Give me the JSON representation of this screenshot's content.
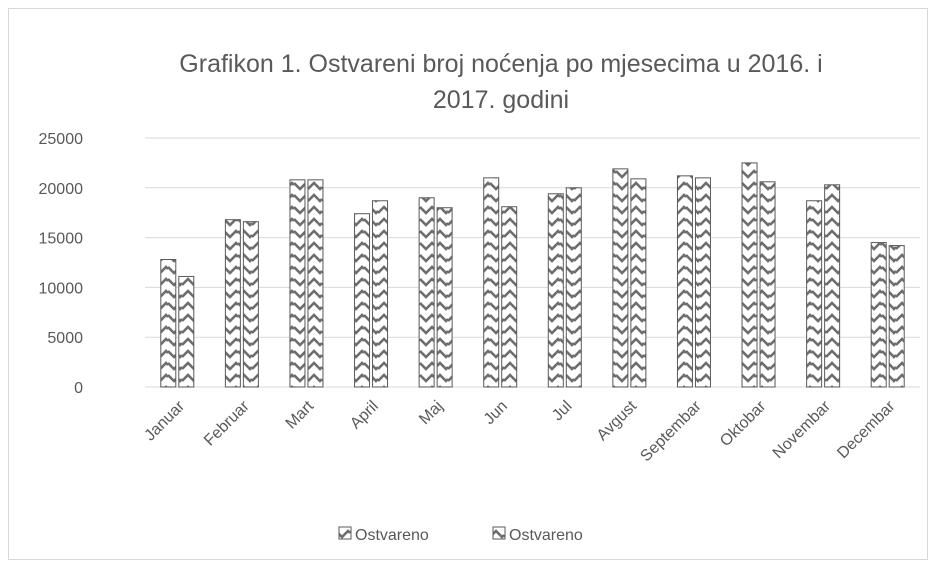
{
  "chart_data": {
    "type": "bar",
    "title": "Grafikon 1. Ostvareni broj noćenja po mjesecima u 2016. i 2017. godini",
    "title_lines": [
      "Grafikon 1. Ostvareni broj noćenja po mjesecima u 2016. i",
      "2017. godini"
    ],
    "categories": [
      "Januar",
      "Februar",
      "Mart",
      "April",
      "Maj",
      "Jun",
      "Jul",
      "Avgust",
      "Septembar",
      "Oktobar",
      "Novembar",
      "Decembar"
    ],
    "series": [
      {
        "name": "Ostvareno",
        "values": [
          12800,
          16800,
          20800,
          17400,
          19000,
          21000,
          19400,
          21900,
          21200,
          22500,
          18700,
          14500
        ]
      },
      {
        "name": "Ostvareno",
        "values": [
          11100,
          16600,
          20800,
          18700,
          18000,
          18100,
          20000,
          20900,
          21000,
          20600,
          20300,
          14200
        ]
      }
    ],
    "ylim": [
      0,
      25000
    ],
    "yticks": [
      "25000",
      "20000",
      "15000",
      "10000",
      "5000",
      "0"
    ],
    "xlabel": "",
    "ylabel": "",
    "grid": true,
    "legend_position": "bottom",
    "colors": {
      "bar_stroke": "#595959",
      "bar_pattern": "#6e6e6e",
      "grid": "#d9d9d9",
      "text": "#595959"
    }
  }
}
